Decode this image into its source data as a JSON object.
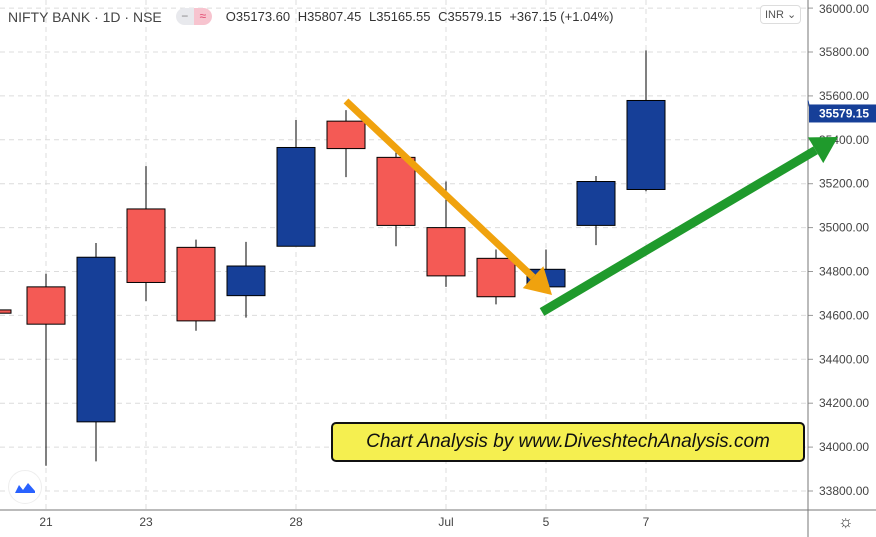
{
  "header": {
    "symbol": "NIFTY BANK · 1D · NSE",
    "open": "O35173.60",
    "high": "H35807.45",
    "low": "L35165.55",
    "close": "C35579.15",
    "change": "+367.15 (+1.04%)",
    "currency": "INR"
  },
  "annotation": "Chart Analysis by www.DiveshtechAnalysis.com",
  "colors": {
    "up": "#163f98",
    "down": "#f45a55",
    "price_label": "#163f98",
    "orange_arrow": "#f0a20e",
    "green_arrow": "#1f9a2c",
    "annotation_bg": "#f5ef50"
  },
  "chart_data": {
    "type": "candlestick",
    "title": "NIFTY BANK · 1D · NSE",
    "last_price": "35579.15",
    "ylim": [
      33700,
      36000
    ],
    "yticks": [
      "33800.00",
      "34000.00",
      "34200.00",
      "34400.00",
      "34600.00",
      "34800.00",
      "35000.00",
      "35200.00",
      "35400.00",
      "35600.00",
      "35800.00",
      "36000.00"
    ],
    "xtick_labels": [
      {
        "index": 1,
        "label": "21"
      },
      {
        "index": 3,
        "label": "23"
      },
      {
        "index": 6,
        "label": "28"
      },
      {
        "index": 9,
        "label": "Jul"
      },
      {
        "index": 11,
        "label": "5"
      },
      {
        "index": 13,
        "label": "7"
      }
    ],
    "grid": true,
    "candles": [
      {
        "date": "Jun 18",
        "o": 34625,
        "h": 34625,
        "l": 34605,
        "c": 34610
      },
      {
        "date": "Jun 21",
        "o": 34730,
        "h": 34790,
        "l": 33915,
        "c": 34560
      },
      {
        "date": "Jun 22",
        "o": 34115,
        "h": 34930,
        "l": 33935,
        "c": 34865
      },
      {
        "date": "Jun 23",
        "o": 35085,
        "h": 35280,
        "l": 34665,
        "c": 34750
      },
      {
        "date": "Jun 24",
        "o": 34910,
        "h": 34945,
        "l": 34530,
        "c": 34575
      },
      {
        "date": "Jun 25",
        "o": 34690,
        "h": 34935,
        "l": 34590,
        "c": 34825
      },
      {
        "date": "Jun 28",
        "o": 34915,
        "h": 35490,
        "l": 34915,
        "c": 35365
      },
      {
        "date": "Jun 29",
        "o": 35485,
        "h": 35535,
        "l": 35230,
        "c": 35360
      },
      {
        "date": "Jun 30",
        "o": 35320,
        "h": 35355,
        "l": 34915,
        "c": 35010
      },
      {
        "date": "Jul 1",
        "o": 35000,
        "h": 35210,
        "l": 34730,
        "c": 34780
      },
      {
        "date": "Jul 2",
        "o": 34860,
        "h": 34900,
        "l": 34650,
        "c": 34685
      },
      {
        "date": "Jul 5",
        "o": 34730,
        "h": 34900,
        "l": 34705,
        "c": 34810
      },
      {
        "date": "Jul 6",
        "o": 35010,
        "h": 35235,
        "l": 34920,
        "c": 35210
      },
      {
        "date": "Jul 7",
        "o": 35173.6,
        "h": 35807.45,
        "l": 35165.55,
        "c": 35579.15
      }
    ]
  }
}
